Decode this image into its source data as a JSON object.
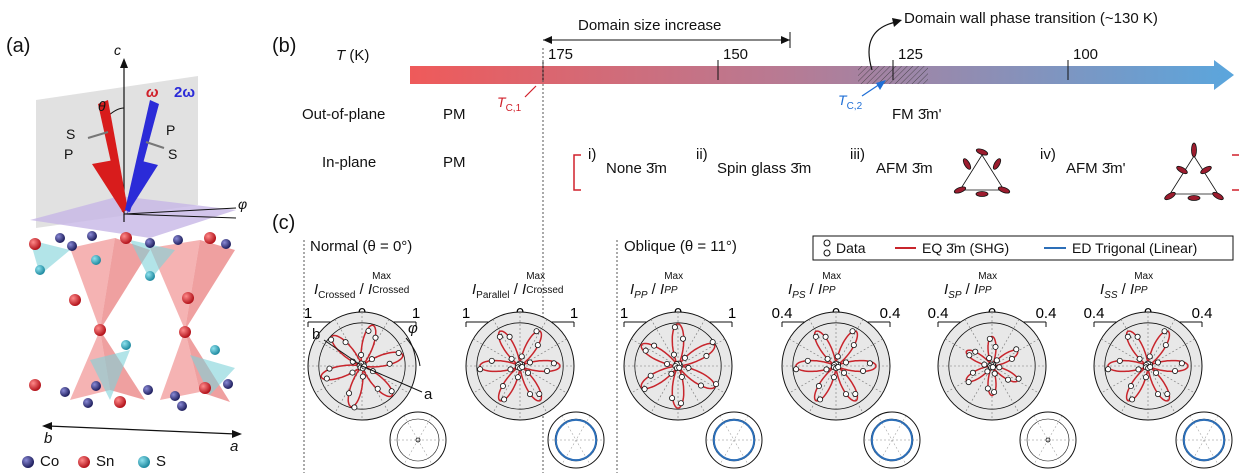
{
  "panels": {
    "a": "(a)",
    "b": "(b)",
    "c": "(c)"
  },
  "a_panel": {
    "axis_c": "c",
    "axis_b": "b",
    "axis_a": "a",
    "theta": "θ",
    "omega": "ω",
    "two_omega": "2ω",
    "phi": "φ",
    "pol_s1": "S",
    "pol_p1": "P",
    "pol_p2": "P",
    "pol_s2": "S",
    "legend": [
      {
        "label": "Co",
        "color": "#2f2f7a"
      },
      {
        "label": "Sn",
        "color": "#c81e1e"
      },
      {
        "label": "S",
        "color": "#2b9fb5"
      }
    ]
  },
  "b_panel": {
    "t_label": "T",
    "t_unit": "(K)",
    "ticks": [
      "175",
      "150",
      "125",
      "100"
    ],
    "domain_size": "Domain size increase",
    "domain_wall": "Domain wall phase transition (~130 K)",
    "tc1_main": "T",
    "tc1_sub": "C,1",
    "tc2_main": "T",
    "tc2_sub": "C,2",
    "out_of_plane": "Out-of-plane",
    "in_plane": "In-plane",
    "pm1": "PM",
    "pm2": "PM",
    "fm": "FM 3̄m'",
    "phases": [
      {
        "num": "i)",
        "name": "None 3̄m"
      },
      {
        "num": "ii)",
        "name": "Spin glass 3̄m"
      },
      {
        "num": "iii)",
        "name": "AFM 3̄m"
      },
      {
        "num": "iv)",
        "name": "AFM 3̄m'"
      }
    ]
  },
  "c_panel": {
    "normal_title": "Normal (θ = 0°)",
    "oblique_title": "Oblique (θ = 11°)",
    "legend": {
      "data": "Data",
      "eq": "EQ 3̄m (SHG)",
      "ed": "ED Trigonal (Linear)"
    },
    "axis_b": "b",
    "axis_a": "a",
    "phi": "φ",
    "plots": [
      {
        "num": "Crossed",
        "num_sup": "",
        "den": "Crossed",
        "ticks": [
          "1",
          "0",
          "1"
        ],
        "lobes": 6,
        "phase": 15,
        "amp": 1.0,
        "small_ring": false
      },
      {
        "num": "Parallel",
        "num_sup": "",
        "den": "Crossed",
        "ticks": [
          "1",
          "0",
          "1"
        ],
        "lobes": 6,
        "phase": 0,
        "amp": 0.95,
        "small_ring": true
      },
      {
        "num": "PP",
        "num_sup": "",
        "den": "PP",
        "ticks": [
          "1",
          "0",
          "1"
        ],
        "lobes": 3,
        "phase": 90,
        "amp": 1.0,
        "small_ring": true
      },
      {
        "num": "PS",
        "num_sup": "",
        "den": "PP",
        "ticks": [
          "0.4",
          "0",
          "0.4"
        ],
        "lobes": 6,
        "phase": 0,
        "amp": 0.95,
        "small_ring": true
      },
      {
        "num": "SP",
        "num_sup": "",
        "den": "PP",
        "ticks": [
          "0.4",
          "0",
          "0.4"
        ],
        "lobes": 6,
        "phase": 30,
        "amp": 0.7,
        "small_ring": false
      },
      {
        "num": "SS",
        "num_sup": "",
        "den": "PP",
        "ticks": [
          "0.4",
          "0",
          "0.4"
        ],
        "lobes": 6,
        "phase": 0,
        "amp": 0.95,
        "small_ring": true
      }
    ],
    "max_label": "Max",
    "colors": {
      "eq": "#c8252c",
      "ed": "#2d6fb8"
    }
  }
}
